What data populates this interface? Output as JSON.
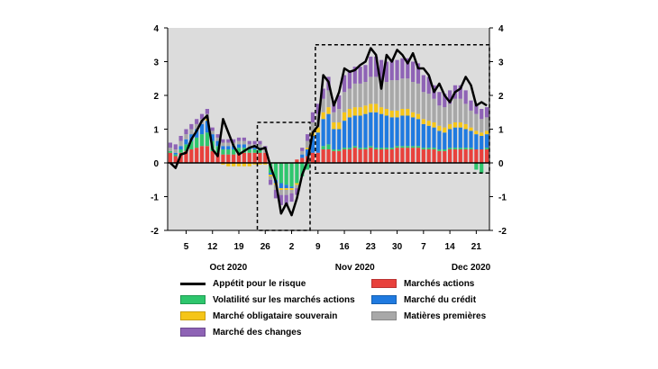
{
  "chart_data": {
    "type": "bar",
    "stacked": true,
    "ylim": [
      -2,
      4
    ],
    "yticks": [
      -2,
      -1,
      0,
      1,
      2,
      3,
      4
    ],
    "grid": false,
    "legend_position": "bottom",
    "tick_labels": [
      "5",
      "12",
      "19",
      "26",
      "2",
      "9",
      "16",
      "23",
      "30",
      "7",
      "14",
      "21"
    ],
    "tick_index": [
      3,
      8,
      13,
      18,
      23,
      28,
      33,
      38,
      43,
      48,
      53,
      58
    ],
    "month_labels": [
      {
        "label": "Oct 2020",
        "index": 11
      },
      {
        "label": "Nov 2020",
        "index": 35
      },
      {
        "label": "Dec 2020",
        "index": 57
      }
    ],
    "highlight_ranges": [
      [
        17,
        27
      ],
      [
        28,
        61
      ]
    ],
    "series": [
      {
        "name": "Marchés actions",
        "color": "#e8413c",
        "values": [
          0.3,
          0.2,
          0.3,
          0.35,
          0.4,
          0.45,
          0.5,
          0.5,
          0.35,
          0.3,
          0.25,
          0.25,
          0.25,
          0.3,
          0.3,
          0.3,
          0.3,
          0.3,
          0.3,
          0.0,
          0.0,
          0.0,
          0.0,
          0.0,
          0.1,
          0.15,
          0.2,
          0.3,
          0.3,
          0.4,
          0.4,
          0.35,
          0.35,
          0.4,
          0.4,
          0.45,
          0.4,
          0.4,
          0.45,
          0.4,
          0.4,
          0.4,
          0.4,
          0.45,
          0.45,
          0.45,
          0.45,
          0.45,
          0.4,
          0.4,
          0.4,
          0.35,
          0.35,
          0.4,
          0.4,
          0.4,
          0.4,
          0.4,
          0.4,
          0.4,
          0.4
        ]
      },
      {
        "name": "Volatilité sur les marchés actions",
        "color": "#2ec66d",
        "values": [
          0.05,
          0.05,
          0.1,
          0.2,
          0.25,
          0.3,
          0.35,
          0.4,
          0.3,
          0.2,
          0.15,
          0.15,
          0.15,
          0.15,
          0.15,
          0.1,
          0.1,
          0.1,
          0.0,
          -0.3,
          -0.5,
          -0.6,
          -0.65,
          -0.7,
          -0.6,
          -0.4,
          -0.2,
          0.0,
          0.0,
          0.1,
          0.15,
          0.05,
          0.05,
          0.05,
          0.05,
          0.05,
          0.05,
          0.05,
          0.05,
          0.05,
          0.05,
          0.05,
          0.05,
          0.05,
          0.05,
          0.05,
          0.05,
          0.05,
          0.05,
          0.05,
          0.05,
          0.05,
          0.05,
          0.05,
          0.05,
          0.05,
          0.05,
          0.05,
          -0.2,
          -0.3,
          0.05
        ]
      },
      {
        "name": "Marché du crédit",
        "color": "#1f7ae0",
        "values": [
          0.0,
          0.05,
          0.1,
          0.15,
          0.2,
          0.25,
          0.3,
          0.35,
          0.2,
          0.15,
          0.1,
          0.1,
          0.1,
          0.1,
          0.1,
          0.05,
          0.05,
          0.05,
          0.0,
          -0.05,
          -0.1,
          -0.15,
          -0.1,
          -0.05,
          0.0,
          0.1,
          0.2,
          0.5,
          0.6,
          0.8,
          0.9,
          0.6,
          0.6,
          0.8,
          0.9,
          0.9,
          0.95,
          1.0,
          1.0,
          1.05,
          1.0,
          0.95,
          0.9,
          0.85,
          0.9,
          0.9,
          0.85,
          0.8,
          0.7,
          0.65,
          0.6,
          0.55,
          0.5,
          0.55,
          0.6,
          0.6,
          0.55,
          0.5,
          0.45,
          0.4,
          0.4
        ]
      },
      {
        "name": "Marché obligataire souverain",
        "color": "#f5c518",
        "values": [
          0.0,
          0.0,
          0.0,
          0.0,
          0.0,
          0.0,
          0.0,
          0.05,
          0.0,
          0.0,
          -0.05,
          -0.1,
          -0.1,
          -0.1,
          -0.1,
          -0.1,
          -0.05,
          -0.05,
          -0.05,
          -0.05,
          -0.05,
          -0.05,
          -0.05,
          -0.05,
          -0.05,
          0.0,
          0.05,
          0.1,
          0.15,
          0.2,
          0.2,
          0.2,
          0.2,
          0.25,
          0.25,
          0.25,
          0.25,
          0.25,
          0.25,
          0.25,
          0.2,
          0.2,
          0.2,
          0.2,
          0.2,
          0.2,
          0.15,
          0.15,
          0.15,
          0.15,
          0.15,
          0.15,
          0.15,
          0.15,
          0.15,
          0.15,
          0.15,
          0.1,
          0.1,
          0.1,
          0.1
        ]
      },
      {
        "name": "Matières premières",
        "color": "#a8a8a8",
        "values": [
          0.1,
          0.1,
          0.15,
          0.15,
          0.15,
          0.15,
          0.15,
          0.15,
          0.1,
          0.1,
          0.1,
          0.1,
          0.1,
          0.1,
          0.1,
          0.1,
          0.1,
          0.1,
          0.1,
          -0.1,
          -0.15,
          -0.15,
          -0.15,
          -0.1,
          -0.1,
          0.1,
          0.2,
          0.3,
          0.4,
          0.4,
          0.5,
          0.3,
          0.4,
          0.6,
          0.6,
          0.7,
          0.7,
          0.7,
          0.8,
          0.8,
          0.8,
          0.8,
          0.9,
          0.9,
          0.9,
          0.9,
          0.9,
          0.9,
          0.8,
          0.8,
          0.7,
          0.6,
          0.6,
          0.6,
          0.7,
          0.7,
          0.6,
          0.5,
          0.5,
          0.4,
          0.4
        ]
      },
      {
        "name": "Marché des changes",
        "color": "#8e63b5",
        "values": [
          0.15,
          0.15,
          0.15,
          0.15,
          0.15,
          0.15,
          0.15,
          0.15,
          0.1,
          0.1,
          0.1,
          0.1,
          0.1,
          0.1,
          0.1,
          0.1,
          0.1,
          0.1,
          0.1,
          -0.15,
          -0.25,
          -0.3,
          -0.3,
          -0.25,
          -0.2,
          0.1,
          0.2,
          0.3,
          0.3,
          0.3,
          0.4,
          0.35,
          0.4,
          0.5,
          0.5,
          0.5,
          0.5,
          0.5,
          0.6,
          0.6,
          0.6,
          0.6,
          0.6,
          0.6,
          0.6,
          0.6,
          0.6,
          0.6,
          0.5,
          0.5,
          0.4,
          0.4,
          0.4,
          0.4,
          0.4,
          0.4,
          0.4,
          0.3,
          0.3,
          0.3,
          0.3
        ]
      }
    ],
    "line": {
      "name": "Appétit pour le risque",
      "color": "#000000",
      "values": [
        0.0,
        -0.15,
        0.25,
        0.3,
        0.7,
        0.95,
        1.25,
        1.4,
        0.4,
        0.2,
        1.3,
        0.9,
        0.5,
        0.25,
        0.35,
        0.45,
        0.5,
        0.4,
        0.45,
        -0.1,
        -0.55,
        -1.5,
        -1.2,
        -1.55,
        -1.05,
        -0.35,
        0.05,
        0.9,
        1.1,
        2.6,
        2.4,
        1.7,
        2.1,
        2.8,
        2.7,
        2.75,
        2.9,
        3.0,
        3.4,
        3.2,
        2.2,
        3.2,
        3.0,
        3.35,
        3.2,
        2.95,
        3.25,
        2.8,
        2.8,
        2.6,
        2.1,
        2.35,
        2.0,
        1.8,
        2.1,
        2.2,
        2.55,
        2.3,
        1.7,
        1.8,
        1.7
      ]
    }
  }
}
